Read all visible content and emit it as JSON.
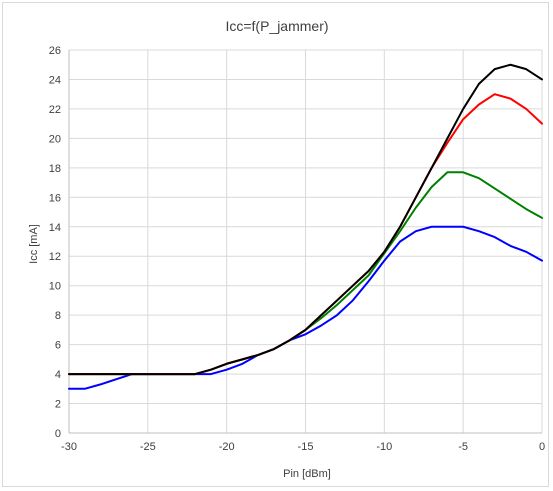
{
  "chart_data": {
    "type": "line",
    "title": "Icc=f(P_jammer)",
    "xlabel": "Pin [dBm]",
    "ylabel": "Icc [mA]",
    "xlim": [
      -30,
      0
    ],
    "ylim": [
      0,
      26
    ],
    "xticks": [
      -30,
      -25,
      -20,
      -15,
      -10,
      -5,
      0
    ],
    "yticks": [
      0,
      2,
      4,
      6,
      8,
      10,
      12,
      14,
      16,
      18,
      20,
      22,
      24,
      26
    ],
    "grid": true,
    "legend": "none",
    "x": [
      -30,
      -29,
      -28,
      -27,
      -26,
      -25,
      -24,
      -23,
      -22,
      -21,
      -20,
      -19,
      -18,
      -17,
      -16,
      -15,
      -14,
      -13,
      -12,
      -11,
      -10,
      -9,
      -8,
      -7,
      -6,
      -5,
      -4,
      -3,
      -2,
      -1,
      0
    ],
    "series": [
      {
        "color": "#0000ff",
        "values": [
          3.0,
          3.0,
          3.3,
          3.65,
          4.0,
          4.0,
          4.0,
          4.0,
          4.0,
          4.0,
          4.3,
          4.7,
          5.3,
          5.7,
          6.3,
          6.7,
          7.3,
          8.0,
          9.0,
          10.3,
          11.7,
          13.0,
          13.7,
          14.0,
          14.0,
          14.0,
          13.7,
          13.3,
          12.7,
          12.3,
          11.7
        ]
      },
      {
        "color": "#008000",
        "values": [
          4.0,
          4.0,
          4.0,
          4.0,
          4.0,
          4.0,
          4.0,
          4.0,
          4.0,
          4.3,
          4.7,
          5.0,
          5.3,
          5.7,
          6.3,
          7.0,
          7.8,
          8.7,
          9.7,
          10.7,
          12.2,
          13.7,
          15.3,
          16.7,
          17.7,
          17.7,
          17.3,
          16.6,
          15.9,
          15.2,
          14.6
        ]
      },
      {
        "color": "#ff0000",
        "values": [
          4.0,
          4.0,
          4.0,
          4.0,
          4.0,
          4.0,
          4.0,
          4.0,
          4.0,
          4.3,
          4.7,
          5.0,
          5.3,
          5.7,
          6.3,
          7.0,
          8.0,
          9.0,
          10.0,
          11.0,
          12.3,
          14.0,
          16.0,
          18.0,
          19.7,
          21.3,
          22.3,
          23.0,
          22.7,
          22.0,
          21.0
        ]
      },
      {
        "color": "#000000",
        "values": [
          4.0,
          4.0,
          4.0,
          4.0,
          4.0,
          4.0,
          4.0,
          4.0,
          4.0,
          4.3,
          4.7,
          5.0,
          5.3,
          5.7,
          6.3,
          7.0,
          8.0,
          9.0,
          10.0,
          11.0,
          12.3,
          14.0,
          16.0,
          18.0,
          20.0,
          22.0,
          23.7,
          24.7,
          25.0,
          24.7,
          24.0
        ]
      }
    ]
  }
}
